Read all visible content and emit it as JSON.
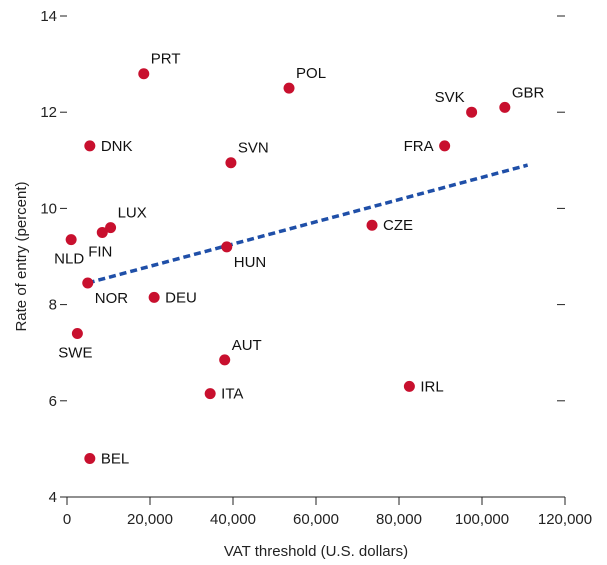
{
  "colors": {
    "points": "#c8102e",
    "trend": "#1f4fa8",
    "axis": "#222222"
  },
  "chart_data": {
    "type": "scatter",
    "title": "",
    "xlabel": "VAT threshold (U.S. dollars)",
    "ylabel": "Rate of entry (percent)",
    "xlim": [
      0,
      120000
    ],
    "ylim": [
      4,
      14
    ],
    "xticks": [
      0,
      20000,
      40000,
      60000,
      80000,
      100000,
      120000
    ],
    "xtick_labels": [
      "0",
      "20,000",
      "40,000",
      "60,000",
      "80,000",
      "100,000",
      "120,000"
    ],
    "yticks": [
      4,
      6,
      8,
      10,
      12,
      14
    ],
    "ytick_labels": [
      "4",
      "6",
      "8",
      "10",
      "12",
      "14"
    ],
    "grid": false,
    "points": [
      {
        "label": "PRT",
        "x": 18500,
        "y": 12.8,
        "pos": "ne"
      },
      {
        "label": "POL",
        "x": 53500,
        "y": 12.5,
        "pos": "ne"
      },
      {
        "label": "SVK",
        "x": 97500,
        "y": 12.0,
        "pos": "nw"
      },
      {
        "label": "GBR",
        "x": 105500,
        "y": 12.1,
        "pos": "ne"
      },
      {
        "label": "DNK",
        "x": 5500,
        "y": 11.3,
        "pos": "e"
      },
      {
        "label": "FRA",
        "x": 91000,
        "y": 11.3,
        "pos": "w"
      },
      {
        "label": "SVN",
        "x": 39500,
        "y": 10.95,
        "pos": "ne"
      },
      {
        "label": "LUX",
        "x": 10500,
        "y": 9.6,
        "pos": "ne"
      },
      {
        "label": "FIN",
        "x": 8500,
        "y": 9.5,
        "pos": "s"
      },
      {
        "label": "NLD",
        "x": 1000,
        "y": 9.35,
        "pos": "s"
      },
      {
        "label": "CZE",
        "x": 73500,
        "y": 9.65,
        "pos": "e"
      },
      {
        "label": "HUN",
        "x": 38500,
        "y": 9.2,
        "pos": "se"
      },
      {
        "label": "NOR",
        "x": 5000,
        "y": 8.45,
        "pos": "se"
      },
      {
        "label": "DEU",
        "x": 21000,
        "y": 8.15,
        "pos": "e"
      },
      {
        "label": "SWE",
        "x": 2500,
        "y": 7.4,
        "pos": "s"
      },
      {
        "label": "AUT",
        "x": 38000,
        "y": 6.85,
        "pos": "ne"
      },
      {
        "label": "ITA",
        "x": 34500,
        "y": 6.15,
        "pos": "e"
      },
      {
        "label": "IRL",
        "x": 82500,
        "y": 6.3,
        "pos": "e"
      },
      {
        "label": "BEL",
        "x": 5500,
        "y": 4.8,
        "pos": "e"
      }
    ],
    "trendline": {
      "style": "dashed",
      "x": [
        5000,
        111000
      ],
      "y": [
        8.45,
        10.9
      ]
    }
  }
}
